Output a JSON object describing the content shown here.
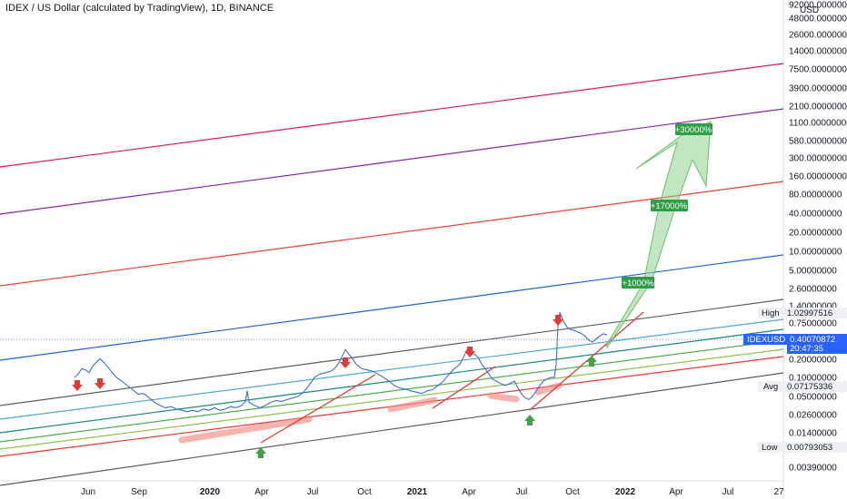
{
  "header": {
    "title": "IDEX / US Dollar (calculated by TradingView), 1D, BINANCE"
  },
  "price_axis": {
    "currency": "USD",
    "ticks": [
      "92000.00000000",
      "48000.00000000",
      "26000.00000000",
      "14000.00000000",
      "7500.00000000",
      "3900.00000000",
      "2100.00000000",
      "1100.00000000",
      "580.00000000",
      "300.00000000",
      "160.00000000",
      "80.00000000",
      "40.00000000",
      "20.00000000",
      "10.00000000",
      "5.00000000",
      "2.60000000",
      "1.40000000",
      "0.75000000",
      "0.20000000",
      "0.10000000",
      "0.05000000",
      "0.02600000",
      "0.01400000",
      "0.00390000"
    ]
  },
  "time_axis": {
    "ticks": [
      {
        "label": "Jun",
        "bold": false
      },
      {
        "label": "Sep",
        "bold": false
      },
      {
        "label": "2020",
        "bold": true
      },
      {
        "label": "Apr",
        "bold": false
      },
      {
        "label": "Jul",
        "bold": false
      },
      {
        "label": "Oct",
        "bold": false
      },
      {
        "label": "2021",
        "bold": true
      },
      {
        "label": "Apr",
        "bold": false
      },
      {
        "label": "Jul",
        "bold": false
      },
      {
        "label": "Oct",
        "bold": false
      },
      {
        "label": "2022",
        "bold": true
      },
      {
        "label": "Apr",
        "bold": false
      },
      {
        "label": "Jul",
        "bold": false
      },
      {
        "label": "27",
        "bold": false
      }
    ]
  },
  "stats": {
    "high_label": "High",
    "high_value": "1.02997516",
    "avg_label": "Avg",
    "avg_value": "0.07175336",
    "low_label": "Low",
    "low_value": "0.00793053"
  },
  "last_price": {
    "symbol": "IDEXUSD",
    "price": "0.40070872",
    "countdown": "20:47:35"
  },
  "annotations": {
    "target_1000": "+1000%",
    "target_17000": "+17000%",
    "target_30000": "+30000%"
  },
  "colors": {
    "price_line": "#3b6fd8",
    "channel_gray": "#5d5d5d",
    "channel_lightblue": "#4fa8d8",
    "channel_teal": "#138a78",
    "channel_green": "#4caf50",
    "channel_lightgreen": "#8bc34a",
    "channel_red": "#e53935",
    "channel_blue": "#1e63d6",
    "channel_orange_red": "#e8452c",
    "channel_purple": "#8e24aa",
    "channel_crimson": "#d81b60",
    "arrow_up": "#43a047",
    "arrow_down": "#e53935",
    "target_arrow": "#8fd18f",
    "label_bg": "#2e9e47",
    "last_price_bg": "#2962ff"
  },
  "chart_data": {
    "type": "line",
    "title": "IDEX / US Dollar (calculated by TradingView), 1D, BINANCE",
    "y_scale": "log",
    "series": [
      {
        "name": "IDEXUSD",
        "x": [
          "2019-05",
          "2019-06",
          "2019-07",
          "2019-08",
          "2019-09",
          "2019-10",
          "2019-11",
          "2019-12",
          "2020-01",
          "2020-02",
          "2020-03",
          "2020-04",
          "2020-05",
          "2020-06",
          "2020-07",
          "2020-08",
          "2020-09",
          "2020-10",
          "2020-11",
          "2020-12",
          "2021-01",
          "2021-02",
          "2021-03",
          "2021-04",
          "2021-05",
          "2021-06",
          "2021-07",
          "2021-08",
          "2021-09",
          "2021-10",
          "2021-11"
        ],
        "values": [
          0.075,
          0.11,
          0.085,
          0.045,
          0.035,
          0.021,
          0.018,
          0.017,
          0.019,
          0.026,
          0.018,
          0.019,
          0.027,
          0.03,
          0.075,
          0.15,
          0.09,
          0.07,
          0.04,
          0.036,
          0.04,
          0.08,
          0.14,
          0.16,
          0.06,
          0.07,
          0.03,
          0.08,
          0.85,
          0.4,
          0.4
        ]
      }
    ],
    "annotations": [
      "+1000%",
      "+17000%",
      "+30000%"
    ],
    "high": 1.02997516,
    "avg": 0.07175336,
    "low": 0.00793053,
    "last": 0.40070872
  }
}
